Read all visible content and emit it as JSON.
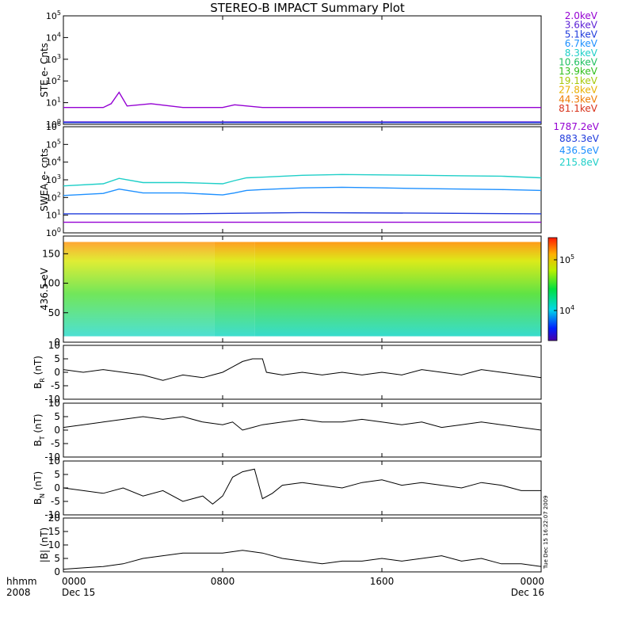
{
  "title": "STEREO-B IMPACT Summary Plot",
  "side_stamp": "Tue Dec 15 16:22:07 2009",
  "x_axis": {
    "corner_label": "hhmm",
    "corner_year": "2008",
    "ticks": [
      {
        "label": "0000",
        "sub": "Dec 15",
        "t": 0
      },
      {
        "label": "0800",
        "sub": "",
        "t": 8
      },
      {
        "label": "1600",
        "sub": "",
        "t": 16
      },
      {
        "label": "0000",
        "sub": "Dec 16",
        "t": 24
      }
    ]
  },
  "legend_ste": [
    {
      "label": "2.0keV",
      "color": "#9400d3"
    },
    {
      "label": "3.6keV",
      "color": "#5a1fd6"
    },
    {
      "label": "5.1keV",
      "color": "#1f3bdc"
    },
    {
      "label": "6.7keV",
      "color": "#1e90ff"
    },
    {
      "label": "8.3keV",
      "color": "#1fcfc8"
    },
    {
      "label": "10.6keV",
      "color": "#20c060"
    },
    {
      "label": "13.9keV",
      "color": "#2fbf1a"
    },
    {
      "label": "19.1keV",
      "color": "#a7c90a"
    },
    {
      "label": "27.8keV",
      "color": "#e8b000"
    },
    {
      "label": "44.3keV",
      "color": "#ee7b00"
    },
    {
      "label": "81.1keV",
      "color": "#d8321a"
    }
  ],
  "legend_swea": [
    {
      "label": "1787.2eV",
      "color": "#9400d3"
    },
    {
      "label": "883.3eV",
      "color": "#1f3bdc"
    },
    {
      "label": "436.5eV",
      "color": "#1e90ff"
    },
    {
      "label": "215.8eV",
      "color": "#1fcfc8"
    }
  ],
  "chart_data": [
    {
      "type": "line",
      "panel": "ste",
      "ylabel": "STE e- Cnts",
      "yscale": "log",
      "ylim": [
        1,
        100000
      ],
      "yticks": [
        {
          "base": "10",
          "exp": "0"
        },
        {
          "base": "10",
          "exp": "1"
        },
        {
          "base": "10",
          "exp": "2"
        },
        {
          "base": "10",
          "exp": "3"
        },
        {
          "base": "10",
          "exp": "4"
        },
        {
          "base": "10",
          "exp": "5"
        }
      ],
      "series": [
        {
          "name": "2.0keV",
          "x": [
            0,
            2,
            2.4,
            2.8,
            3.2,
            4.4,
            6,
            8,
            8.6,
            10,
            12,
            14,
            16,
            18,
            20,
            22,
            24
          ],
          "y": [
            6,
            6,
            9,
            30,
            7,
            9,
            6,
            6,
            8,
            6,
            6,
            6,
            6,
            6,
            6,
            6,
            6
          ]
        },
        {
          "name": "3.6keV",
          "x": [
            0,
            6,
            12,
            18,
            24
          ],
          "y": [
            1.3,
            1.3,
            1.3,
            1.3,
            1.3
          ]
        },
        {
          "name": "5.1keV",
          "x": [
            0,
            6,
            12,
            18,
            24
          ],
          "y": [
            1.2,
            1.2,
            1.2,
            1.2,
            1.2
          ]
        }
      ]
    },
    {
      "type": "line",
      "panel": "swea",
      "ylabel": "SWEA e- cnts",
      "yscale": "log",
      "ylim": [
        1,
        1000000
      ],
      "yticks": [
        {
          "base": "10",
          "exp": "0"
        },
        {
          "base": "10",
          "exp": "1"
        },
        {
          "base": "10",
          "exp": "2"
        },
        {
          "base": "10",
          "exp": "3"
        },
        {
          "base": "10",
          "exp": "4"
        },
        {
          "base": "10",
          "exp": "5"
        },
        {
          "base": "10",
          "exp": "6"
        }
      ],
      "series": [
        {
          "name": "215.8eV",
          "x": [
            0,
            2,
            2.8,
            4,
            6,
            8,
            8.6,
            9.2,
            10,
            12,
            14,
            16,
            18,
            20,
            22,
            24
          ],
          "y": [
            450,
            600,
            1200,
            700,
            700,
            600,
            900,
            1300,
            1400,
            1800,
            2000,
            1900,
            1800,
            1700,
            1600,
            1300
          ]
        },
        {
          "name": "436.5eV",
          "x": [
            0,
            2,
            2.8,
            4,
            6,
            8,
            8.6,
            9.2,
            10,
            12,
            14,
            16,
            18,
            20,
            22,
            24
          ],
          "y": [
            130,
            170,
            300,
            180,
            180,
            140,
            180,
            250,
            280,
            350,
            380,
            350,
            320,
            300,
            280,
            250
          ]
        },
        {
          "name": "883.3eV",
          "x": [
            0,
            6,
            12,
            18,
            24
          ],
          "y": [
            12,
            12,
            14,
            13,
            12
          ]
        },
        {
          "name": "1787.2eV",
          "x": [
            0,
            6,
            12,
            18,
            24
          ],
          "y": [
            4,
            4,
            4,
            4,
            4
          ]
        }
      ]
    },
    {
      "type": "heatmap",
      "panel": "pad",
      "ylabel": "436.5 eV",
      "ylim": [
        0,
        180
      ],
      "yticks": [
        0,
        50,
        100,
        150
      ],
      "colorbar_ticks": [
        "10^4",
        "10^5"
      ],
      "colorbar_tick_labels": [
        {
          "base": "10",
          "exp": "4"
        },
        {
          "base": "10",
          "exp": "5"
        }
      ],
      "segments": [
        {
          "x0": 0,
          "x1": 7.6,
          "level": 0.55
        },
        {
          "x0": 7.6,
          "x1": 9.6,
          "level": 0.7
        },
        {
          "x0": 9.6,
          "x1": 24,
          "level": 0.78
        }
      ]
    },
    {
      "type": "line",
      "panel": "br",
      "ylabel_main": "B",
      "ylabel_sub": "R",
      "ylabel_unit": " (nT)",
      "ylim": [
        -10,
        10
      ],
      "yticks": [
        -10,
        -5,
        0,
        5,
        10
      ],
      "x": [
        0,
        1,
        2,
        3,
        4,
        5,
        5.5,
        6,
        7,
        7.5,
        8,
        8.5,
        9,
        9.5,
        10,
        10.2,
        11,
        12,
        13,
        14,
        15,
        16,
        17,
        18,
        19,
        20,
        21,
        22,
        23,
        24
      ],
      "y": [
        1,
        0,
        1,
        0,
        -1,
        -3,
        -2,
        -1,
        -2,
        -1,
        0,
        2,
        4,
        5,
        5,
        0,
        -1,
        0,
        -1,
        0,
        -1,
        0,
        -1,
        1,
        0,
        -1,
        1,
        0,
        -1,
        -2
      ]
    },
    {
      "type": "line",
      "panel": "bt",
      "ylabel_main": "B",
      "ylabel_sub": "T",
      "ylabel_unit": " (nT)",
      "ylim": [
        -10,
        10
      ],
      "yticks": [
        -10,
        -5,
        0,
        5,
        10
      ],
      "x": [
        0,
        1,
        2,
        3,
        4,
        5,
        6,
        7,
        8,
        8.5,
        9,
        9.5,
        10,
        11,
        12,
        13,
        14,
        15,
        16,
        17,
        18,
        19,
        20,
        21,
        22,
        23,
        24
      ],
      "y": [
        1,
        2,
        3,
        4,
        5,
        4,
        5,
        3,
        2,
        3,
        0,
        1,
        2,
        3,
        4,
        3,
        3,
        4,
        3,
        2,
        3,
        1,
        2,
        3,
        2,
        1,
        0
      ]
    },
    {
      "type": "line",
      "panel": "bn",
      "ylabel_main": "B",
      "ylabel_sub": "N",
      "ylabel_unit": " (nT)",
      "ylim": [
        -10,
        10
      ],
      "yticks": [
        -10,
        -5,
        0,
        5,
        10
      ],
      "x": [
        0,
        1,
        2,
        3,
        4,
        5,
        6,
        7,
        7.5,
        8,
        8.5,
        9,
        9.6,
        10,
        10.5,
        11,
        12,
        13,
        14,
        15,
        16,
        17,
        18,
        19,
        20,
        21,
        22,
        23,
        24
      ],
      "y": [
        0,
        -1,
        -2,
        0,
        -3,
        -1,
        -5,
        -3,
        -6,
        -3,
        4,
        6,
        7,
        -4,
        -2,
        1,
        2,
        1,
        0,
        2,
        3,
        1,
        2,
        1,
        0,
        2,
        1,
        -1,
        -1
      ]
    },
    {
      "type": "line",
      "panel": "bmag",
      "ylabel": "|B| (nT)",
      "ylim": [
        0,
        20
      ],
      "yticks": [
        0,
        5,
        10,
        15,
        20
      ],
      "x": [
        0,
        1,
        2,
        3,
        4,
        5,
        6,
        7,
        8,
        9,
        10,
        11,
        12,
        13,
        14,
        15,
        16,
        17,
        18,
        19,
        20,
        21,
        22,
        23,
        24
      ],
      "y": [
        1,
        1.5,
        2,
        3,
        5,
        6,
        7,
        7,
        7,
        8,
        7,
        5,
        4,
        3,
        4,
        4,
        5,
        4,
        5,
        6,
        4,
        5,
        3,
        3,
        2
      ]
    }
  ]
}
